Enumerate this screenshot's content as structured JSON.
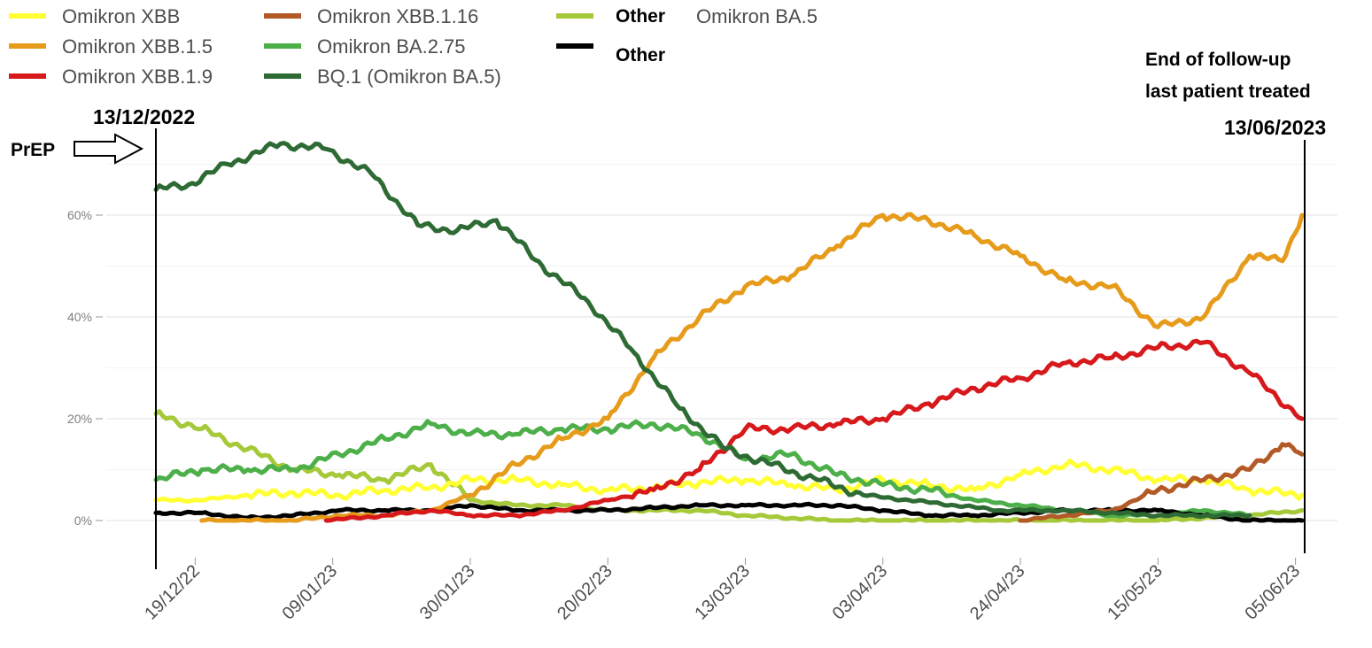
{
  "legend": {
    "col1": [
      {
        "label": "Omikron XBB",
        "color": "#ffff33"
      },
      {
        "label": "Omikron XBB.1.5",
        "color": "#e69b1b"
      },
      {
        "label": "Omikron XBB.1.9",
        "color": "#d7191c"
      }
    ],
    "col2": [
      {
        "label": "Omikron XBB.1.16",
        "color": "#b35a27"
      },
      {
        "label": "Omikron BA.2.75",
        "color": "#4daf4a"
      },
      {
        "label": "BQ.1 (Omikron BA.5)",
        "color": "#2e6b34"
      }
    ],
    "col3": [
      {
        "label": "Other",
        "extra": "Omikron BA.5",
        "color": "#a6c93a"
      },
      {
        "label": "Other",
        "color": "#000000"
      }
    ]
  },
  "annotations": {
    "start_date": "13/12/2022",
    "prep_label": "PrEP",
    "end_line1": "End of follow-up",
    "end_line2": "last patient treated",
    "end_date": "13/06/2023"
  },
  "chart_data": {
    "type": "line",
    "x_unit": "date",
    "x_range": [
      "2022-12-13",
      "2023-06-06"
    ],
    "x_ticks": [
      "19/12/22",
      "09/01/23",
      "30/01/23",
      "20/02/23",
      "13/03/23",
      "03/04/23",
      "24/04/23",
      "15/05/23",
      "05/06/23"
    ],
    "y_ticks": [
      "0%",
      "20%",
      "40%",
      "60%"
    ],
    "ylim": [
      0,
      70
    ],
    "y_unit": "%",
    "grid": true,
    "legend_position": "top",
    "series": [
      {
        "name": "Omikron XBB",
        "color": "#ffff33",
        "points": [
          [
            "2022-12-13",
            4
          ],
          [
            "2022-12-20",
            4
          ],
          [
            "2022-12-27",
            5
          ],
          [
            "2023-01-03",
            5.5
          ],
          [
            "2023-01-10",
            5
          ],
          [
            "2023-01-17",
            6
          ],
          [
            "2023-01-24",
            6.5
          ],
          [
            "2023-01-30",
            8
          ],
          [
            "2023-02-06",
            8
          ],
          [
            "2023-02-13",
            7
          ],
          [
            "2023-02-20",
            6
          ],
          [
            "2023-02-27",
            6.5
          ],
          [
            "2023-03-06",
            7.5
          ],
          [
            "2023-03-13",
            8
          ],
          [
            "2023-03-20",
            7
          ],
          [
            "2023-03-27",
            6
          ],
          [
            "2023-04-03",
            8
          ],
          [
            "2023-04-10",
            7
          ],
          [
            "2023-04-17",
            6
          ],
          [
            "2023-04-24",
            9
          ],
          [
            "2023-05-01",
            11
          ],
          [
            "2023-05-08",
            10
          ],
          [
            "2023-05-15",
            8
          ],
          [
            "2023-05-22",
            8
          ],
          [
            "2023-05-29",
            6
          ],
          [
            "2023-06-06",
            5
          ]
        ]
      },
      {
        "name": "Omikron XBB.1.5",
        "color": "#e69b1b",
        "points": [
          [
            "2022-12-20",
            0
          ],
          [
            "2022-12-27",
            0
          ],
          [
            "2023-01-03",
            0
          ],
          [
            "2023-01-10",
            1
          ],
          [
            "2023-01-17",
            1
          ],
          [
            "2023-01-24",
            2
          ],
          [
            "2023-01-30",
            5
          ],
          [
            "2023-02-06",
            11
          ],
          [
            "2023-02-13",
            16
          ],
          [
            "2023-02-20",
            20
          ],
          [
            "2023-02-27",
            32
          ],
          [
            "2023-03-06",
            40
          ],
          [
            "2023-03-13",
            46
          ],
          [
            "2023-03-20",
            48
          ],
          [
            "2023-03-27",
            54
          ],
          [
            "2023-04-03",
            60
          ],
          [
            "2023-04-10",
            59
          ],
          [
            "2023-04-17",
            56
          ],
          [
            "2023-04-24",
            52
          ],
          [
            "2023-05-01",
            47
          ],
          [
            "2023-05-08",
            46
          ],
          [
            "2023-05-15",
            38
          ],
          [
            "2023-05-22",
            40
          ],
          [
            "2023-05-29",
            52
          ],
          [
            "2023-06-03",
            51
          ],
          [
            "2023-06-06",
            60
          ]
        ]
      },
      {
        "name": "Omikron XBB.1.9",
        "color": "#d7191c",
        "points": [
          [
            "2023-01-08",
            0
          ],
          [
            "2023-01-17",
            1
          ],
          [
            "2023-01-24",
            2
          ],
          [
            "2023-01-30",
            1
          ],
          [
            "2023-02-06",
            1
          ],
          [
            "2023-02-13",
            2
          ],
          [
            "2023-02-20",
            4
          ],
          [
            "2023-02-27",
            6
          ],
          [
            "2023-03-06",
            10
          ],
          [
            "2023-03-13",
            18
          ],
          [
            "2023-03-20",
            18
          ],
          [
            "2023-03-27",
            19
          ],
          [
            "2023-04-03",
            20
          ],
          [
            "2023-04-10",
            23
          ],
          [
            "2023-04-17",
            26
          ],
          [
            "2023-04-24",
            28
          ],
          [
            "2023-05-01",
            31
          ],
          [
            "2023-05-08",
            32
          ],
          [
            "2023-05-15",
            34
          ],
          [
            "2023-05-22",
            35
          ],
          [
            "2023-05-29",
            29
          ],
          [
            "2023-06-06",
            20
          ]
        ]
      },
      {
        "name": "Omikron XBB.1.16",
        "color": "#b35a27",
        "points": [
          [
            "2023-04-24",
            0
          ],
          [
            "2023-05-01",
            1
          ],
          [
            "2023-05-08",
            2
          ],
          [
            "2023-05-15",
            6
          ],
          [
            "2023-05-22",
            8
          ],
          [
            "2023-05-29",
            10
          ],
          [
            "2023-06-03",
            15
          ],
          [
            "2023-06-06",
            13
          ]
        ]
      },
      {
        "name": "Omikron BA.2.75",
        "color": "#4daf4a",
        "points": [
          [
            "2022-12-13",
            8
          ],
          [
            "2022-12-20",
            10
          ],
          [
            "2022-12-27",
            10
          ],
          [
            "2023-01-03",
            10
          ],
          [
            "2023-01-10",
            13
          ],
          [
            "2023-01-17",
            16
          ],
          [
            "2023-01-24",
            19
          ],
          [
            "2023-01-30",
            17
          ],
          [
            "2023-02-06",
            17
          ],
          [
            "2023-02-13",
            18
          ],
          [
            "2023-02-20",
            18
          ],
          [
            "2023-02-27",
            19
          ],
          [
            "2023-03-06",
            17
          ],
          [
            "2023-03-13",
            12
          ],
          [
            "2023-03-20",
            13
          ],
          [
            "2023-03-27",
            9
          ],
          [
            "2023-04-03",
            7
          ],
          [
            "2023-04-10",
            6
          ],
          [
            "2023-04-17",
            4
          ],
          [
            "2023-04-24",
            3
          ],
          [
            "2023-05-01",
            2
          ],
          [
            "2023-05-08",
            1
          ],
          [
            "2023-05-15",
            1
          ],
          [
            "2023-05-22",
            2
          ],
          [
            "2023-05-29",
            1
          ]
        ]
      },
      {
        "name": "BQ.1 (Omikron BA.5)",
        "color": "#2e6b34",
        "points": [
          [
            "2022-12-13",
            65
          ],
          [
            "2022-12-18",
            66
          ],
          [
            "2022-12-24",
            70
          ],
          [
            "2023-01-01",
            74
          ],
          [
            "2023-01-08",
            73
          ],
          [
            "2023-01-15",
            68
          ],
          [
            "2023-01-22",
            58
          ],
          [
            "2023-01-28",
            57
          ],
          [
            "2023-02-03",
            59
          ],
          [
            "2023-02-10",
            50
          ],
          [
            "2023-02-17",
            43
          ],
          [
            "2023-02-24",
            33
          ],
          [
            "2023-03-03",
            22
          ],
          [
            "2023-03-10",
            14
          ],
          [
            "2023-03-17",
            11
          ],
          [
            "2023-03-24",
            8
          ],
          [
            "2023-03-31",
            5
          ],
          [
            "2023-04-07",
            4
          ],
          [
            "2023-04-14",
            3
          ],
          [
            "2023-04-21",
            2
          ],
          [
            "2023-05-01",
            2
          ],
          [
            "2023-05-15",
            1
          ],
          [
            "2023-05-29",
            1
          ]
        ]
      },
      {
        "name": "Other Omikron BA.5",
        "color": "#a6c93a",
        "points": [
          [
            "2022-12-13",
            21
          ],
          [
            "2022-12-20",
            18
          ],
          [
            "2022-12-27",
            14
          ],
          [
            "2023-01-03",
            10
          ],
          [
            "2023-01-10",
            9
          ],
          [
            "2023-01-17",
            8
          ],
          [
            "2023-01-24",
            11
          ],
          [
            "2023-01-30",
            4
          ],
          [
            "2023-02-06",
            3
          ],
          [
            "2023-02-13",
            3
          ],
          [
            "2023-02-20",
            2
          ],
          [
            "2023-02-27",
            2
          ],
          [
            "2023-03-06",
            2
          ],
          [
            "2023-03-13",
            1
          ],
          [
            "2023-03-27",
            0
          ],
          [
            "2023-04-24",
            0
          ],
          [
            "2023-05-15",
            0
          ],
          [
            "2023-05-29",
            1
          ],
          [
            "2023-06-06",
            2
          ]
        ]
      },
      {
        "name": "Other",
        "color": "#000000",
        "points": [
          [
            "2022-12-13",
            1.5
          ],
          [
            "2022-12-20",
            1.5
          ],
          [
            "2022-12-27",
            0.5
          ],
          [
            "2023-01-03",
            1
          ],
          [
            "2023-01-10",
            2
          ],
          [
            "2023-01-17",
            2
          ],
          [
            "2023-01-24",
            2
          ],
          [
            "2023-01-30",
            3
          ],
          [
            "2023-02-06",
            2
          ],
          [
            "2023-02-13",
            2
          ],
          [
            "2023-02-20",
            2
          ],
          [
            "2023-02-27",
            2.5
          ],
          [
            "2023-03-06",
            3
          ],
          [
            "2023-03-13",
            3
          ],
          [
            "2023-03-20",
            3
          ],
          [
            "2023-03-27",
            3
          ],
          [
            "2023-04-03",
            2
          ],
          [
            "2023-04-10",
            1
          ],
          [
            "2023-04-17",
            1
          ],
          [
            "2023-04-24",
            1.5
          ],
          [
            "2023-05-01",
            2
          ],
          [
            "2023-05-08",
            2
          ],
          [
            "2023-05-15",
            2
          ],
          [
            "2023-05-22",
            1
          ],
          [
            "2023-05-29",
            0
          ],
          [
            "2023-06-06",
            0
          ]
        ]
      }
    ]
  }
}
